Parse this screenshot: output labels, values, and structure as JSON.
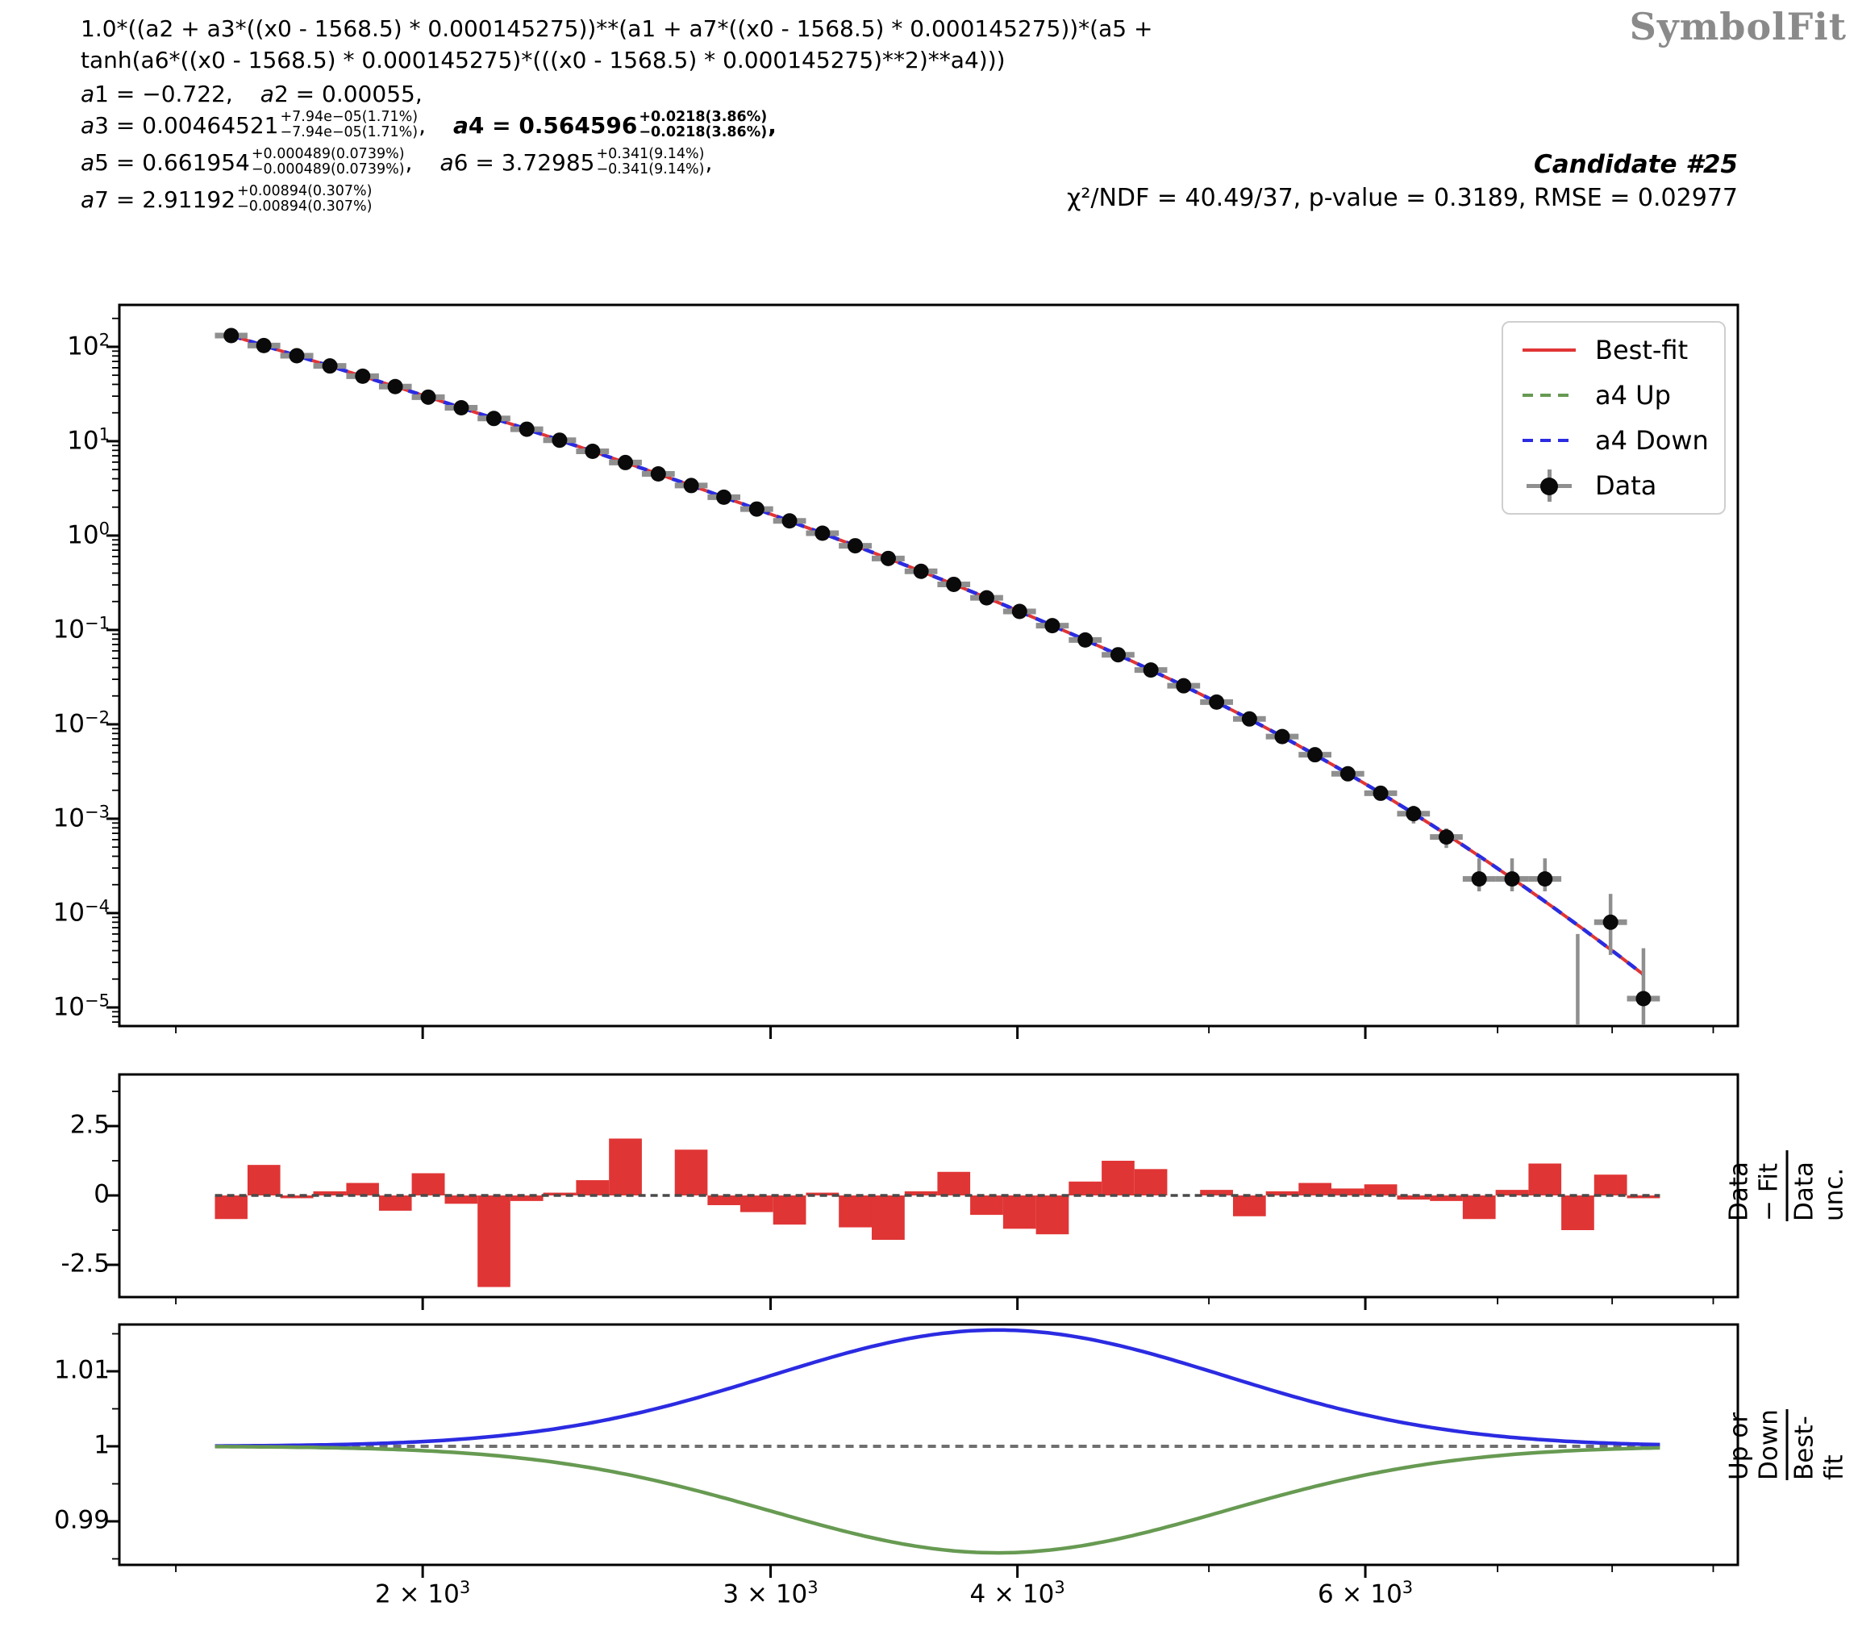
{
  "branding": {
    "logo_text": "SymbolFit"
  },
  "formula": {
    "line1": "1.0*((a2 + a3*((x0 - 1568.5) * 0.000145275))**(a1 + a7*((x0 - 1568.5) * 0.000145275))*(a5 +",
    "line2": "tanh(a6*((x0 - 1568.5) * 0.000145275)*(((x0 - 1568.5) * 0.000145275)**2)**a4)))"
  },
  "parameters": [
    {
      "name": "a1",
      "value": " = −0.722,",
      "up": null,
      "down": null,
      "bold": false,
      "row": 0
    },
    {
      "name": "a2",
      "value": " = 0.00055,",
      "up": null,
      "down": null,
      "bold": false,
      "row": 0
    },
    {
      "name": "a3",
      "value": " = 0.00464521",
      "up": "+7.94e−05(1.71%)",
      "down": "−7.94e−05(1.71%)",
      "trail": ",",
      "bold": false,
      "row": 1
    },
    {
      "name": "a4",
      "value": " = 0.564596",
      "up": "+0.0218(3.86%)",
      "down": "−0.0218(3.86%)",
      "trail": ",",
      "bold": true,
      "row": 1
    },
    {
      "name": "a5",
      "value": " = 0.661954",
      "up": "+0.000489(0.0739%)",
      "down": "−0.000489(0.0739%)",
      "trail": ",",
      "bold": false,
      "row": 2
    },
    {
      "name": "a6",
      "value": " = 3.72985",
      "up": "+0.341(9.14%)",
      "down": "−0.341(9.14%)",
      "trail": ",",
      "bold": false,
      "row": 2
    },
    {
      "name": "a7",
      "value": " = 2.91192",
      "up": "+0.00894(0.307%)",
      "down": "−0.00894(0.307%)",
      "trail": "",
      "bold": false,
      "row": 3
    }
  ],
  "candidate": {
    "label": "Candidate #25",
    "stats": "χ²/NDF = 40.49/37, p-value = 0.3189, RMSE = 0.02977"
  },
  "legend": {
    "items": [
      {
        "label": "Best-fit",
        "swatch": "line",
        "color": "#e03535"
      },
      {
        "label": "a4 Up",
        "swatch": "dash",
        "color": "#679a52"
      },
      {
        "label": "a4 Down",
        "swatch": "dash",
        "color": "#2b2be2"
      },
      {
        "label": "Data",
        "swatch": "marker",
        "color": "#0a0a0a"
      }
    ]
  },
  "colors": {
    "best_fit": "#e03535",
    "a4_up": "#679a52",
    "a4_down": "#2b2be2",
    "residual_bar": "#e03535",
    "error_bar": "#8f8f8f",
    "marker": "#0a0a0a",
    "dashed_ref": "#6f6f6f",
    "frame": "#000000"
  },
  "chart_data": {
    "type": "multi-panel (log-log spectrum fit: line + scatter, residual bar, ratio line)",
    "x_axis": {
      "scale": "log",
      "major_ticks": [
        {
          "value": 2000,
          "mant": "2",
          "exp": "3",
          "label": "2 × 10³"
        },
        {
          "value": 3000,
          "mant": "3",
          "exp": "3",
          "label": "3 × 10³"
        },
        {
          "value": 4000,
          "mant": "4",
          "exp": "3",
          "label": "4 × 10³"
        },
        {
          "value": 6000,
          "mant": "6",
          "exp": "3",
          "label": "6 × 10³"
        }
      ],
      "minor_ticks": [
        1500,
        5000,
        7000,
        8000,
        9000
      ],
      "range": [
        1404,
        9262
      ]
    },
    "main_panel": {
      "y_scale": "log",
      "y_tick_exps": [
        "2",
        "1",
        "0",
        "−1",
        "−2",
        "−3",
        "−4",
        "−5"
      ],
      "y_tick_labels": [
        "10²",
        "10¹",
        "10⁰",
        "10⁻¹",
        "10⁻²",
        "10⁻³",
        "10⁻⁴",
        "10⁻⁵"
      ],
      "y_log_range": [
        -5.197,
        2.444
      ],
      "series_names": [
        "Best-fit",
        "a4 Up",
        "a4 Down",
        "Data"
      ],
      "bins": {
        "centers": [
          1600,
          1662,
          1727,
          1795,
          1865,
          1937,
          2013,
          2092,
          2173,
          2258,
          2346,
          2438,
          2533,
          2632,
          2735,
          2841,
          2952,
          3067,
          3187,
          3311,
          3441,
          3575,
          3714,
          3859,
          4010,
          4166,
          4329,
          4498,
          4673,
          4855,
          5045,
          5242,
          5446,
          5658,
          5879,
          6108,
          6347,
          6594,
          6851,
          7119,
          7397,
          7685,
          7985,
          8297
        ],
        "data_y": [
          131.6,
          103.1,
          80.5,
          62.7,
          48.8,
          37.9,
          29.3,
          22.6,
          17.4,
          13.4,
          10.25,
          7.81,
          5.94,
          4.5,
          3.39,
          2.55,
          1.91,
          1.43,
          1.06,
          0.78,
          0.572,
          0.418,
          0.304,
          0.219,
          0.157,
          0.111,
          0.0783,
          0.0546,
          0.0376,
          0.0256,
          0.0172,
          0.0114,
          0.00742,
          0.00476,
          0.00299,
          0.00186,
          0.00113,
          0.00064,
          0.00023,
          0.00023,
          0.00023,
          null,
          8e-05,
          1.24e-05
        ],
        "yerr_lo": [
          0,
          0,
          0,
          0,
          0,
          0,
          0,
          0,
          0,
          0,
          0,
          0,
          0,
          0,
          0,
          0,
          0,
          0,
          0,
          0,
          0,
          0,
          0,
          0,
          0,
          0,
          0,
          0,
          0,
          0,
          0,
          0,
          0,
          0,
          0,
          0.0003,
          0.00024,
          0.00015,
          6e-05,
          6e-05,
          6e-05,
          0,
          4.4e-05,
          1.04e-05
        ],
        "yerr_hi": [
          0,
          0,
          0,
          0,
          0,
          0,
          0,
          0,
          0,
          0,
          0,
          0,
          0,
          0,
          0,
          0,
          0,
          0,
          0,
          0,
          0,
          0,
          0,
          0,
          0,
          0,
          0,
          0,
          0,
          0,
          0,
          0,
          0,
          0,
          0,
          0.0003,
          0.00024,
          0.00015,
          0.00015,
          0.00015,
          0.00015,
          6e-05,
          8e-05,
          3e-05
        ]
      }
    },
    "residual_panel": {
      "ylabel_numerator": "Data − Fit",
      "ylabel_denominator": "Data unc.",
      "y_ticks": [
        "2.5",
        "0",
        "-2.5"
      ],
      "y_tick_values": [
        2.5,
        0,
        -2.5
      ],
      "values": [
        -0.85,
        1.1,
        -0.1,
        0.15,
        0.45,
        -0.55,
        0.8,
        -0.3,
        -3.3,
        -0.2,
        0.1,
        0.55,
        2.05,
        0.0,
        1.65,
        -0.35,
        -0.6,
        -1.05,
        0.1,
        -1.15,
        -1.6,
        0.15,
        0.85,
        -0.7,
        -1.2,
        -1.4,
        0.5,
        1.25,
        0.95,
        0.0,
        0.2,
        -0.75,
        0.15,
        0.45,
        0.25,
        0.4,
        -0.15,
        -0.2,
        -0.85,
        0.2,
        1.15,
        -1.25,
        0.75,
        -0.1
      ]
    },
    "ratio_panel": {
      "ylabel_numerator": "Up or Down",
      "ylabel_denominator": "Best-fit",
      "y_ticks": [
        "1.01",
        "1",
        "0.99"
      ],
      "y_tick_values": [
        1.01,
        1.0,
        0.99
      ],
      "up_amplitude": 0.0155,
      "down_amplitude": 0.0142,
      "peak_logx": 3.592,
      "sigma_logx": 0.115
    },
    "fit": {
      "x_shift": 1568.5,
      "x_norm": 0.000145275,
      "params": {
        "a1": -0.722,
        "a2": 0.00055,
        "a3": 0.00464521,
        "a4": 0.564596,
        "a5": 0.661954,
        "a6": 3.72985,
        "a7": 2.91192
      },
      "curve_domain": [
        1600,
        8297
      ],
      "reference_domain": [
        1570,
        8458
      ]
    }
  }
}
